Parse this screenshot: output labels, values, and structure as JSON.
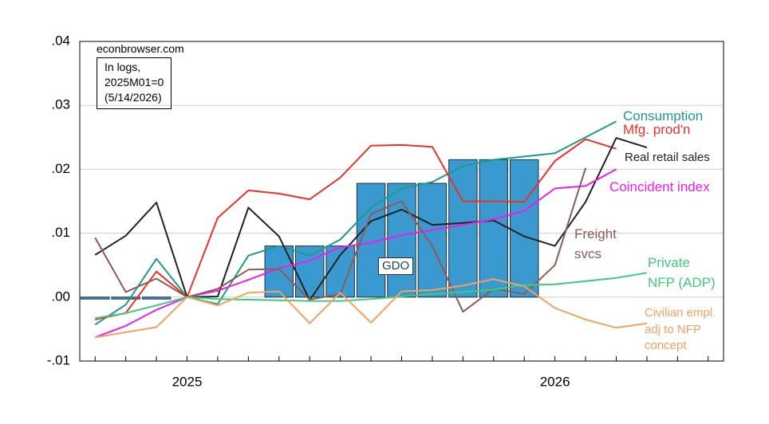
{
  "chart_data": {
    "type": "line",
    "categories": [
      null,
      null,
      null,
      "2025",
      null,
      null,
      null,
      null,
      null,
      null,
      null,
      null,
      null,
      null,
      null,
      "2026",
      null,
      null,
      null,
      null,
      null
    ],
    "ylim": [
      -0.01,
      0.04
    ],
    "yticks": [
      {
        "value": -0.01,
        "label": "-.01"
      },
      {
        "value": 0,
        "label": ".00"
      },
      {
        "value": 0.01,
        "label": ".01"
      },
      {
        "value": 0.02,
        "label": ".02"
      },
      {
        "value": 0.03,
        "label": ".03"
      },
      {
        "value": 0.04,
        "label": ".04"
      }
    ],
    "grid": true,
    "source": "econbrowser.com",
    "note": "In logs,\n2025M01=0\n(5/14/2026)",
    "series": [
      {
        "name": "GDO",
        "type": "bar",
        "color": "#3a9ad0",
        "values": [
          -0.0003,
          -0.0003,
          -0.0003,
          null,
          null,
          null,
          0.008,
          0.008,
          0.008,
          0.0178,
          0.0178,
          0.0178,
          0.0215,
          0.0215,
          0.0215,
          null,
          null,
          null,
          null,
          null,
          null
        ]
      },
      {
        "name": "Consumption",
        "type": "line",
        "color": "#1f9a8a",
        "values": [
          -0.0043,
          -0.0012,
          0.006,
          0,
          -0.0011,
          0.0065,
          0.008,
          0.0065,
          0.009,
          0.014,
          0.017,
          0.018,
          0.0205,
          0.0215,
          0.022,
          0.0225,
          0.025,
          0.0275,
          null,
          null,
          null
        ]
      },
      {
        "name": "Mfg. prod'n",
        "type": "line",
        "color": "#e8332a",
        "values": [
          -0.0035,
          -0.0025,
          0.004,
          0,
          0.0124,
          0.0167,
          0.0162,
          0.0153,
          0.0187,
          0.0237,
          0.0238,
          0.0235,
          0.015,
          0.015,
          0.0149,
          0.0213,
          0.0247,
          0.0232,
          null,
          null,
          null
        ]
      },
      {
        "name": "Real retail sales",
        "type": "line",
        "color": "#222222",
        "values": [
          0.0066,
          0.0096,
          0.0148,
          0,
          0.0001,
          0.014,
          0.0095,
          -0.0005,
          0.0066,
          0.0119,
          0.0137,
          0.0113,
          0.0116,
          0.012,
          0.0095,
          0.008,
          0.0149,
          0.0249,
          0.0234,
          null,
          null
        ]
      },
      {
        "name": "Coincident index",
        "type": "line",
        "color": "#ee1cee",
        "values": [
          -0.0063,
          -0.0045,
          -0.002,
          0,
          0.001,
          0.0027,
          0.0045,
          0.0057,
          0.0078,
          0.0085,
          0.0097,
          0.0105,
          0.0113,
          0.0122,
          0.0135,
          0.017,
          0.0174,
          0.02,
          null,
          null,
          null
        ]
      },
      {
        "name": "Freight\nsvcs",
        "type": "line",
        "color": "#8e5a55",
        "values": [
          0.0093,
          0.0008,
          0.0029,
          0,
          0.0013,
          0.0043,
          0.0044,
          -0.0004,
          0.0005,
          0.013,
          0.015,
          0.008,
          -0.0023,
          0.0013,
          0.0005,
          0.005,
          0.0202,
          null,
          null,
          null,
          null
        ]
      },
      {
        "name": "Private\nNFP (ADP)",
        "type": "line",
        "color": "#3ec97c",
        "values": [
          -0.0033,
          -0.0025,
          -0.0013,
          0,
          -0.0003,
          -0.0004,
          -0.0005,
          -0.0006,
          -0.0006,
          -0.0003,
          0.0001,
          0.0005,
          0.0008,
          0.0012,
          0.0019,
          0.002,
          0.0025,
          0.003,
          0.0038,
          null,
          null
        ]
      },
      {
        "name": "Civilian empl.\nadj to NFP\nconcept",
        "type": "line",
        "color": "#f2a160",
        "values": [
          -0.0063,
          -0.0055,
          -0.0047,
          0,
          -0.0013,
          0.0007,
          0.0009,
          -0.0041,
          0.0007,
          -0.004,
          0.0009,
          0.0011,
          0.0018,
          0.0028,
          0.0017,
          -0.0017,
          -0.0035,
          -0.0048,
          -0.0041,
          null,
          null
        ]
      }
    ]
  }
}
